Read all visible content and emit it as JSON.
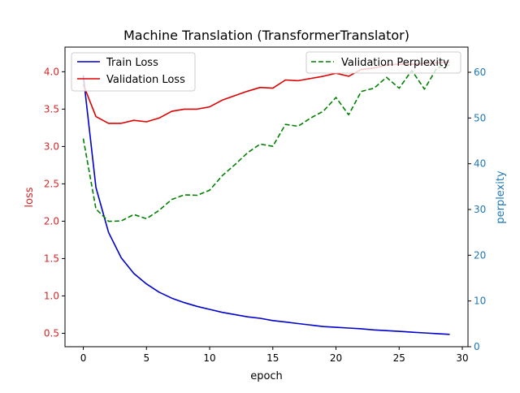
{
  "chart_data": {
    "type": "line",
    "title": "Machine Translation (TransformerTranslator)",
    "xlabel": "epoch",
    "ylabel_left": "loss",
    "ylabel_right": "perplexity",
    "xlim": [
      -1.45,
      30.45
    ],
    "ylim_left": [
      0.32,
      4.33
    ],
    "ylim_right": [
      0,
      65.5
    ],
    "x_ticks": [
      0,
      5,
      10,
      15,
      20,
      25,
      30
    ],
    "y_left_ticks": [
      0.5,
      1.0,
      1.5,
      2.0,
      2.5,
      3.0,
      3.5,
      4.0
    ],
    "y_right_ticks": [
      0,
      10,
      20,
      30,
      40,
      50,
      60
    ],
    "grid": false,
    "colors": {
      "left_axis": "#d62728",
      "right_axis": "#1f77b4"
    },
    "x": [
      0,
      1,
      2,
      3,
      4,
      5,
      6,
      7,
      8,
      9,
      10,
      11,
      12,
      13,
      14,
      15,
      16,
      17,
      18,
      19,
      20,
      21,
      22,
      23,
      24,
      25,
      26,
      27,
      28,
      29
    ],
    "series_left": [
      {
        "name": "Train Loss",
        "color": "#0000cc",
        "style": "solid",
        "values": [
          3.95,
          2.45,
          1.85,
          1.51,
          1.3,
          1.16,
          1.05,
          0.97,
          0.91,
          0.86,
          0.82,
          0.78,
          0.75,
          0.72,
          0.7,
          0.67,
          0.65,
          0.63,
          0.61,
          0.59,
          0.58,
          0.57,
          0.56,
          0.545,
          0.535,
          0.525,
          0.515,
          0.505,
          0.495,
          0.485
        ]
      },
      {
        "name": "Validation Loss",
        "color": "#dd0000",
        "style": "solid",
        "values": [
          3.83,
          3.4,
          3.31,
          3.31,
          3.35,
          3.33,
          3.38,
          3.47,
          3.5,
          3.5,
          3.53,
          3.62,
          3.68,
          3.74,
          3.79,
          3.78,
          3.89,
          3.88,
          3.91,
          3.94,
          3.98,
          3.94,
          4.03,
          4.05,
          4.09,
          4.1,
          4.1,
          4.11,
          4.12,
          4.13
        ]
      }
    ],
    "series_right": [
      {
        "name": "Validation Perplexity",
        "color": "#008000",
        "style": "dashed",
        "values": [
          45.5,
          30.1,
          27.4,
          27.5,
          28.9,
          28.0,
          29.8,
          32.2,
          33.2,
          33.1,
          34.2,
          37.4,
          39.8,
          42.4,
          44.3,
          43.8,
          48.6,
          48.2,
          50.0,
          51.5,
          54.5,
          50.7,
          55.8,
          56.5,
          58.9,
          56.5,
          60.4,
          56.3,
          61.0,
          61.6
        ]
      }
    ],
    "legend_left": {
      "position": "upper left",
      "entries": [
        "Train Loss",
        "Validation Loss"
      ]
    },
    "legend_right": {
      "position": "upper right",
      "entries": [
        "Validation Perplexity"
      ]
    }
  }
}
